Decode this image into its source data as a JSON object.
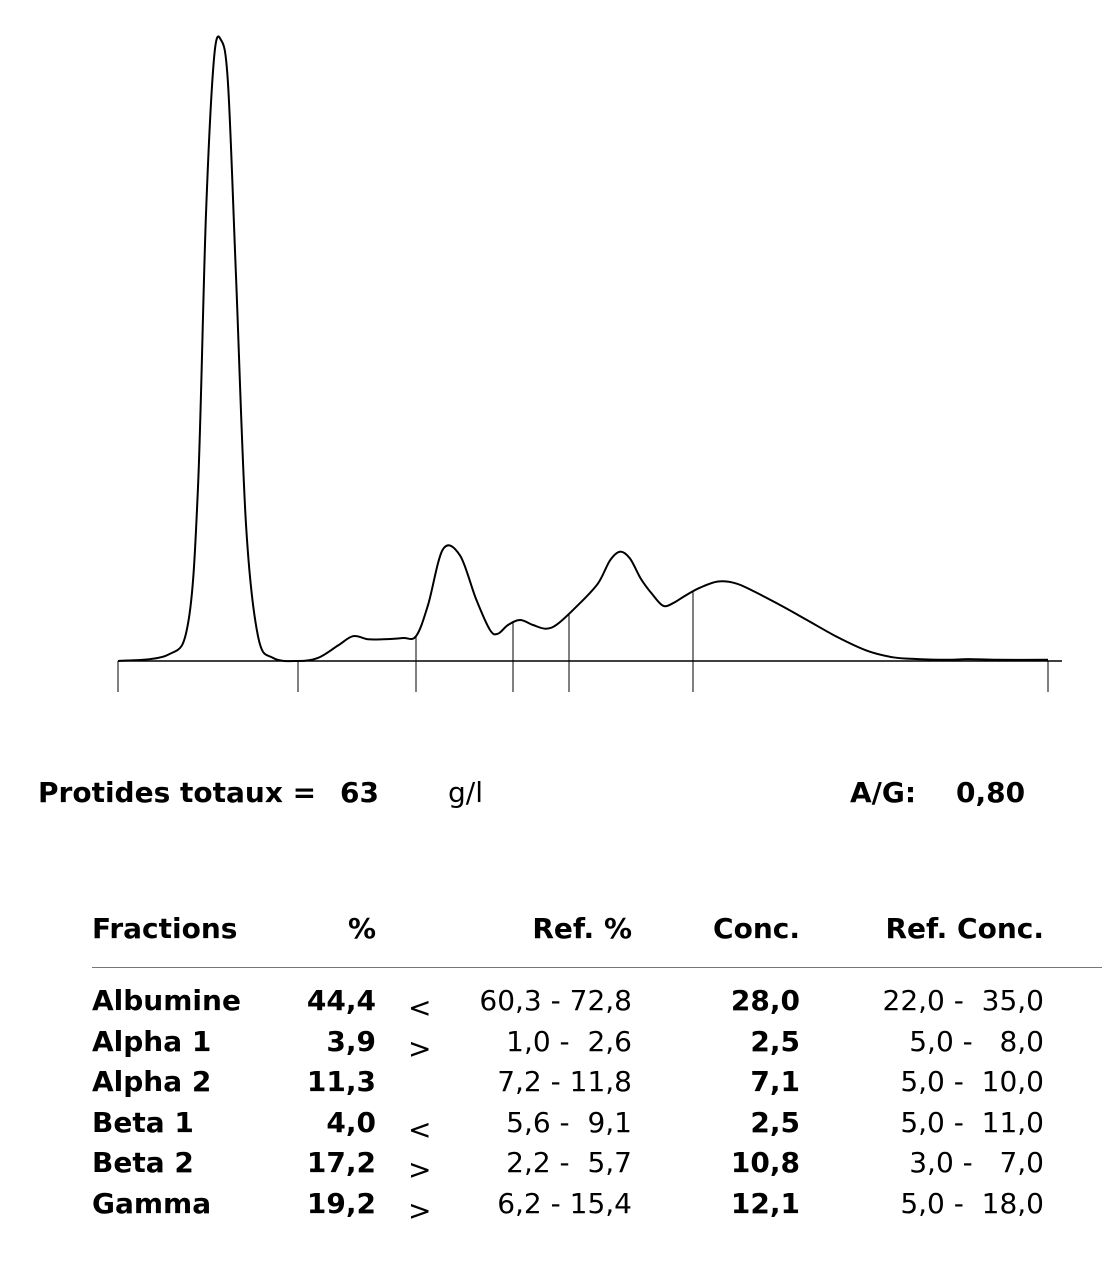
{
  "chart_data": {
    "type": "line",
    "title": "",
    "xlabel": "",
    "ylabel": "",
    "series": [
      {
        "values": [
          [
            0,
            0.0
          ],
          [
            50,
            0.01
          ],
          [
            70,
            0.06
          ],
          [
            80,
            0.28
          ],
          [
            88,
            0.72
          ],
          [
            96,
            0.97
          ],
          [
            103,
            1.0
          ],
          [
            110,
            0.93
          ],
          [
            118,
            0.62
          ],
          [
            128,
            0.22
          ],
          [
            140,
            0.04
          ],
          [
            155,
            0.005
          ],
          [
            180,
            0.0
          ],
          [
            200,
            0.005
          ],
          [
            220,
            0.025
          ],
          [
            235,
            0.04
          ],
          [
            250,
            0.035
          ],
          [
            265,
            0.035
          ],
          [
            285,
            0.037
          ],
          [
            298,
            0.04
          ],
          [
            310,
            0.09
          ],
          [
            325,
            0.18
          ],
          [
            342,
            0.17
          ],
          [
            358,
            0.1
          ],
          [
            372,
            0.05
          ],
          [
            380,
            0.044
          ],
          [
            390,
            0.058
          ],
          [
            402,
            0.066
          ],
          [
            415,
            0.058
          ],
          [
            428,
            0.052
          ],
          [
            440,
            0.06
          ],
          [
            460,
            0.09
          ],
          [
            480,
            0.125
          ],
          [
            492,
            0.162
          ],
          [
            502,
            0.176
          ],
          [
            512,
            0.165
          ],
          [
            523,
            0.132
          ],
          [
            534,
            0.108
          ],
          [
            545,
            0.089
          ],
          [
            555,
            0.093
          ],
          [
            568,
            0.106
          ],
          [
            582,
            0.118
          ],
          [
            600,
            0.128
          ],
          [
            618,
            0.125
          ],
          [
            636,
            0.112
          ],
          [
            660,
            0.092
          ],
          [
            690,
            0.065
          ],
          [
            720,
            0.038
          ],
          [
            750,
            0.016
          ],
          [
            775,
            0.006
          ],
          [
            800,
            0.003
          ],
          [
            830,
            0.002
          ],
          [
            850,
            0.003
          ],
          [
            880,
            0.002
          ],
          [
            930,
            0.002
          ]
        ]
      }
    ],
    "fraction_boundaries": [
      0,
      180,
      298,
      395,
      451,
      575,
      930
    ],
    "x_range": [
      0,
      930
    ],
    "y_range": [
      0,
      1
    ]
  },
  "summary": {
    "total_label": "Protides totaux =",
    "total_value": "63",
    "total_unit": "g/l",
    "ag_label": "A/G:",
    "ag_value": "0,80"
  },
  "table": {
    "headers": {
      "fraction": "Fractions",
      "pct": "%",
      "ref_pct": "Ref. %",
      "conc": "Conc.",
      "ref_conc": "Ref. Conc."
    },
    "rows": [
      {
        "name": "Albumine",
        "pct": "44,4",
        "flag": "<",
        "ref_pct": "60,3 - 72,8",
        "conc": "28,0",
        "ref_conc": "22,0 -  35,0"
      },
      {
        "name": "Alpha 1",
        "pct": "3,9",
        "flag": ">",
        "ref_pct": "1,0 -  2,6",
        "conc": "2,5",
        "ref_conc": "5,0 -   8,0"
      },
      {
        "name": "Alpha 2",
        "pct": "11,3",
        "flag": "",
        "ref_pct": "7,2 - 11,8",
        "conc": "7,1",
        "ref_conc": "5,0 -  10,0"
      },
      {
        "name": "Beta 1",
        "pct": "4,0",
        "flag": "<",
        "ref_pct": "5,6 -  9,1",
        "conc": "2,5",
        "ref_conc": "5,0 -  11,0"
      },
      {
        "name": "Beta 2",
        "pct": "17,2",
        "flag": ">",
        "ref_pct": "2,2 -  5,7",
        "conc": "10,8",
        "ref_conc": "3,0 -   7,0"
      },
      {
        "name": "Gamma",
        "pct": "19,2",
        "flag": ">",
        "ref_pct": "6,2 - 15,4",
        "conc": "12,1",
        "ref_conc": "5,0 -  18,0"
      }
    ]
  }
}
